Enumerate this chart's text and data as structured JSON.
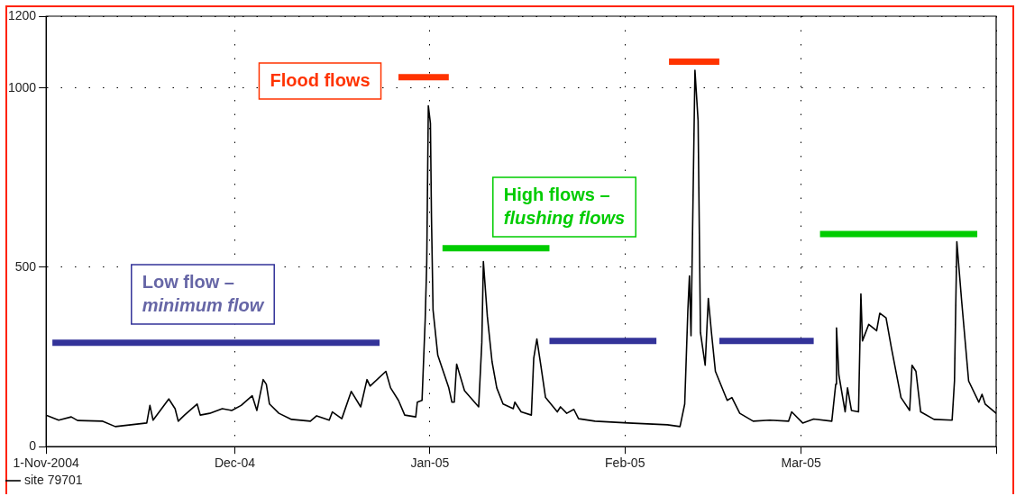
{
  "chart_data": {
    "type": "line",
    "xlim": [
      "2004-11-01",
      "2005-04-01"
    ],
    "xticks": [
      {
        "value": "2004-11-01",
        "label": "1-Nov-2004"
      },
      {
        "value": "2004-12-01",
        "label": "Dec-04"
      },
      {
        "value": "2005-01-01",
        "label": "Jan-05"
      },
      {
        "value": "2005-02-01",
        "label": "Feb-05"
      },
      {
        "value": "2005-03-01",
        "label": "Mar-05"
      },
      {
        "value": "2005-04-01",
        "label": null
      }
    ],
    "ylim": [
      0,
      1200
    ],
    "yticks": [
      0,
      500,
      1000,
      1200
    ],
    "grid": true,
    "legend": "bottom left",
    "line_style": "solid",
    "marker": "none",
    "series": [
      {
        "name": "site 79701",
        "color": "#000000",
        "x": [
          "2004-11-01",
          "2004-11-03",
          "2004-11-05",
          "2004-11-06",
          "2004-11-10",
          "2004-11-12",
          "2004-11-17",
          "2004-11-17T12:00",
          "2004-11-18",
          "2004-11-20T12:00",
          "2004-11-21T12:00",
          "2004-11-22",
          "2004-11-23",
          "2004-11-25",
          "2004-11-25T12:00",
          "2004-11-27",
          "2004-11-29",
          "2004-11-30T12:00",
          "2004-12-02",
          "2004-12-03T18:00",
          "2004-12-04T12:00",
          "2004-12-05T12:00",
          "2004-12-06",
          "2004-12-06T12:00",
          "2004-12-08",
          "2004-12-10",
          "2004-12-13",
          "2004-12-14",
          "2004-12-16",
          "2004-12-16T12:00",
          "2004-12-18",
          "2004-12-19T12:00",
          "2004-12-21",
          "2004-12-22",
          "2004-12-22T12:00",
          "2004-12-25",
          "2004-12-25T18:00",
          "2004-12-27",
          "2004-12-28",
          "2004-12-29T18:00",
          "2004-12-30",
          "2004-12-30T18:00",
          "2004-12-31T06:00",
          "2004-12-31T12:00",
          "2004-12-31T18:00",
          "2005-01-01T02:00",
          "2005-01-01T06:00",
          "2005-01-01T12:00",
          "2005-01-02T06:00",
          "2005-01-04",
          "2005-01-04T12:00",
          "2005-01-04T21:00",
          "2005-01-05T06:00",
          "2005-01-06T12:00",
          "2005-01-08T18:00",
          "2005-01-09T06:00",
          "2005-01-09T12:00",
          "2005-01-10T03:00",
          "2005-01-10T21:00",
          "2005-01-11T15:00",
          "2005-01-12T15:00",
          "2005-01-14T06:00",
          "2005-01-14T12:00",
          "2005-01-15T12:00",
          "2005-01-17T03:00",
          "2005-01-17T12:00",
          "2005-01-18",
          "2005-01-18T15:00",
          "2005-01-19T09:00",
          "2005-01-21T06:00",
          "2005-01-21T18:00",
          "2005-01-22T18:00",
          "2005-01-23T21:00",
          "2005-01-24T15:00",
          "2005-01-27T06:00",
          "2005-02-01T12:00",
          "2005-02-07T18:00",
          "2005-02-09T18:00",
          "2005-02-10T12:00",
          "2005-02-11",
          "2005-02-11T06:00",
          "2005-02-11T12:00",
          "2005-02-12T03:00",
          "2005-02-12T15:00",
          "2005-02-12T18:00",
          "2005-02-13",
          "2005-02-13T18:00",
          "2005-02-14T06:00",
          "2005-02-14T18:00",
          "2005-02-15T09:00",
          "2005-02-17T06:00",
          "2005-02-18",
          "2005-02-19T06:00",
          "2005-02-21T09:00",
          "2005-02-24",
          "2005-02-27",
          "2005-02-27T12:00",
          "2005-03-01T06:00",
          "2005-03-03",
          "2005-03-05T21:00",
          "2005-03-06T12:00",
          "2005-03-06T15:00",
          "2005-03-07",
          "2005-03-08",
          "2005-03-08T09:00",
          "2005-03-09",
          "2005-03-10T03:00",
          "2005-03-10T12:00",
          "2005-03-10T18:00",
          "2005-03-11T18:00",
          "2005-03-13",
          "2005-03-13T12:00",
          "2005-03-14T12:00",
          "2005-03-15T09:00",
          "2005-03-16T21:00",
          "2005-03-18T06:00",
          "2005-03-18T15:00",
          "2005-03-19T06:00",
          "2005-03-20",
          "2005-03-22T03:00",
          "2005-03-25",
          "2005-03-25T09:00",
          "2005-03-25T18:00",
          "2005-03-26T12:00",
          "2005-03-27T15:00",
          "2005-03-29T06:00",
          "2005-03-29T18:00",
          "2005-03-30T06:00",
          "2005-04-01"
        ],
        "values": [
          88,
          74,
          83,
          73,
          71,
          56,
          66,
          115,
          74,
          133,
          106,
          71,
          88,
          119,
          88,
          93,
          106,
          101,
          115,
          142,
          101,
          187,
          174,
          119,
          93,
          76,
          71,
          86,
          74,
          97,
          78,
          154,
          111,
          187,
          169,
          210,
          164,
          129,
          88,
          83,
          124,
          129,
          354,
          516,
          950,
          901,
          639,
          381,
          255,
          164,
          124,
          124,
          230,
          156,
          111,
          290,
          516,
          364,
          237,
          164,
          119,
          106,
          124,
          97,
          88,
          246,
          300,
          227,
          137,
          97,
          111,
          93,
          104,
          78,
          71,
          66,
          61,
          56,
          119,
          381,
          476,
          309,
          1049,
          909,
          712,
          318,
          227,
          413,
          318,
          210,
          129,
          137,
          93,
          71,
          74,
          71,
          97,
          66,
          77,
          71,
          174,
          331,
          200,
          97,
          164,
          101,
          97,
          426,
          295,
          341,
          323,
          372,
          359,
          273,
          137,
          101,
          227,
          210,
          97,
          76,
          74,
          183,
          571,
          409,
          183,
          124,
          146,
          119,
          93
        ]
      },
      {
        "color": "#ff3300",
        "x": [
          "2004-12-27",
          "2005-01-04"
        ],
        "values": [
          1030,
          1030
        ]
      },
      {
        "color": "#ff3300",
        "x": [
          "2005-02-08",
          "2005-02-16"
        ],
        "values": [
          1073,
          1073
        ]
      },
      {
        "color": "#00cc00",
        "x": [
          "2005-01-03",
          "2005-01-20"
        ],
        "values": [
          553,
          553
        ]
      },
      {
        "color": "#00cc00",
        "x": [
          "2005-03-04",
          "2005-03-29"
        ],
        "values": [
          593,
          593
        ]
      },
      {
        "color": "#333399",
        "x": [
          "2004-11-02",
          "2004-12-24"
        ],
        "values": [
          290,
          290
        ]
      },
      {
        "color": "#333399",
        "x": [
          "2005-01-20",
          "2005-02-06"
        ],
        "values": [
          295,
          295
        ]
      },
      {
        "color": "#333399",
        "x": [
          "2005-02-16",
          "2005-03-03"
        ],
        "values": [
          295,
          295
        ]
      }
    ],
    "annotations": [
      "Flood flows",
      "High flows –\nflushing flows",
      "Low flow –\nminimum flow"
    ]
  }
}
